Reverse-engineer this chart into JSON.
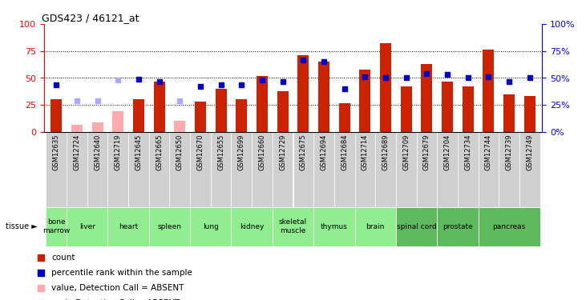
{
  "title": "GDS423 / 46121_at",
  "samples": [
    "GSM12635",
    "GSM12724",
    "GSM12640",
    "GSM12719",
    "GSM12645",
    "GSM12665",
    "GSM12650",
    "GSM12670",
    "GSM12655",
    "GSM12699",
    "GSM12660",
    "GSM12729",
    "GSM12675",
    "GSM12694",
    "GSM12684",
    "GSM12714",
    "GSM12689",
    "GSM12709",
    "GSM12679",
    "GSM12704",
    "GSM12734",
    "GSM12744",
    "GSM12739",
    "GSM12749"
  ],
  "bar_values": [
    30,
    0,
    0,
    0,
    30,
    47,
    0,
    28,
    40,
    30,
    52,
    38,
    71,
    65,
    27,
    58,
    82,
    42,
    63,
    47,
    42,
    76,
    35,
    33
  ],
  "bar_absent": [
    false,
    true,
    true,
    true,
    false,
    false,
    true,
    false,
    false,
    false,
    false,
    false,
    false,
    false,
    false,
    false,
    false,
    false,
    false,
    false,
    false,
    false,
    false,
    false
  ],
  "absent_bar_values": [
    0,
    7,
    9,
    19,
    0,
    0,
    10,
    0,
    0,
    0,
    0,
    0,
    0,
    0,
    0,
    0,
    0,
    0,
    0,
    0,
    0,
    0,
    0,
    0
  ],
  "rank_values": [
    44,
    0,
    0,
    0,
    49,
    47,
    0,
    42,
    44,
    44,
    48,
    47,
    67,
    65,
    40,
    51,
    50,
    50,
    54,
    53,
    50,
    51,
    47,
    50
  ],
  "rank_absent": [
    false,
    true,
    true,
    true,
    false,
    false,
    true,
    false,
    false,
    false,
    false,
    false,
    false,
    false,
    false,
    false,
    false,
    false,
    false,
    false,
    false,
    false,
    false,
    false
  ],
  "absent_rank_values": [
    0,
    29,
    29,
    48,
    0,
    0,
    29,
    0,
    0,
    0,
    0,
    0,
    0,
    0,
    0,
    0,
    0,
    0,
    0,
    0,
    0,
    0,
    0,
    0
  ],
  "tissues": [
    {
      "label": "bone\nmarrow",
      "indices": [
        0
      ],
      "color": "#90ee90"
    },
    {
      "label": "liver",
      "indices": [
        1,
        2
      ],
      "color": "#90ee90"
    },
    {
      "label": "heart",
      "indices": [
        3,
        4
      ],
      "color": "#90ee90"
    },
    {
      "label": "spleen",
      "indices": [
        5,
        6
      ],
      "color": "#90ee90"
    },
    {
      "label": "lung",
      "indices": [
        7,
        8
      ],
      "color": "#90ee90"
    },
    {
      "label": "kidney",
      "indices": [
        9,
        10
      ],
      "color": "#90ee90"
    },
    {
      "label": "skeletal\nmuscle",
      "indices": [
        11,
        12
      ],
      "color": "#90ee90"
    },
    {
      "label": "thymus",
      "indices": [
        13,
        14
      ],
      "color": "#90ee90"
    },
    {
      "label": "brain",
      "indices": [
        15,
        16
      ],
      "color": "#90ee90"
    },
    {
      "label": "spinal cord",
      "indices": [
        17,
        18
      ],
      "color": "#5dbb5d"
    },
    {
      "label": "prostate",
      "indices": [
        19,
        20
      ],
      "color": "#5dbb5d"
    },
    {
      "label": "pancreas",
      "indices": [
        21,
        22,
        23
      ],
      "color": "#5dbb5d"
    }
  ],
  "bar_color_present": "#cc2200",
  "bar_color_absent": "#ffaaaa",
  "rank_color_present": "#0000cc",
  "rank_color_absent": "#aaaaff",
  "bg_color": "#ffffff",
  "xtick_bg": "#d0d0d0",
  "yticks_left": [
    0,
    25,
    50,
    75,
    100
  ],
  "yticks_right": [
    "0%",
    "25%",
    "50%",
    "75%",
    "100%"
  ],
  "hlines": [
    25,
    50,
    75
  ],
  "legend_items": [
    {
      "color": "#cc2200",
      "label": "count"
    },
    {
      "color": "#0000cc",
      "label": "percentile rank within the sample"
    },
    {
      "color": "#ffaaaa",
      "label": "value, Detection Call = ABSENT"
    },
    {
      "color": "#aaaaff",
      "label": "rank, Detection Call = ABSENT"
    }
  ]
}
